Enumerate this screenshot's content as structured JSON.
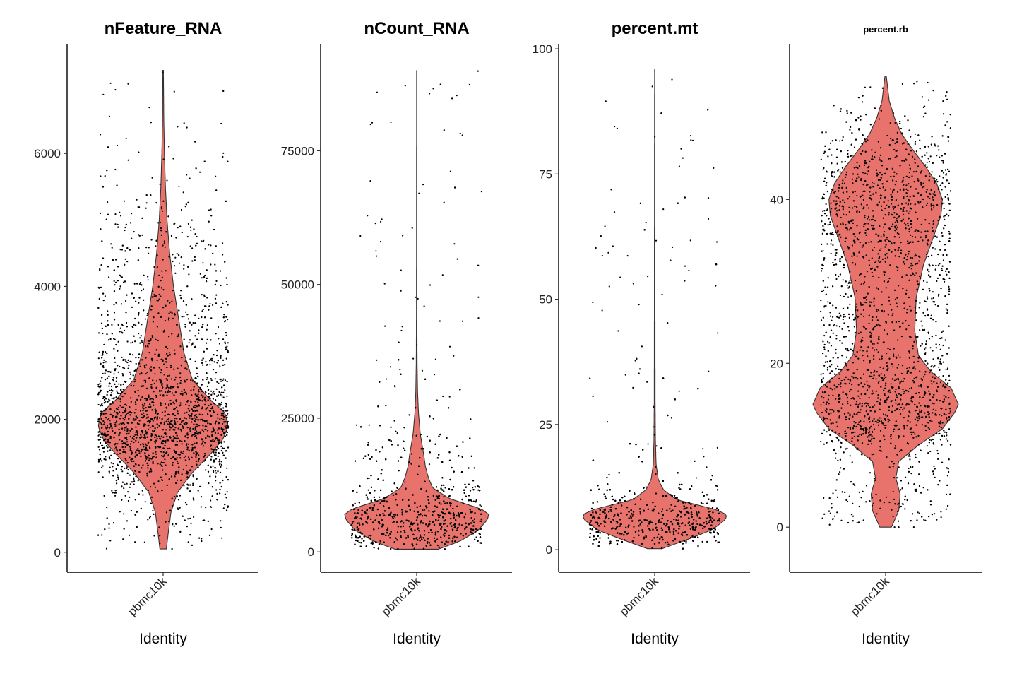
{
  "chart_data": [
    {
      "type": "violin",
      "title": "nFeature_RNA",
      "xlabel": "Identity",
      "ylabel": "",
      "categories": [
        "pbmc10k"
      ],
      "yticks": [
        0,
        2000,
        4000,
        6000
      ],
      "ytick_labels": [
        "0",
        "2000",
        "4000",
        "6000"
      ],
      "ylim": [
        -300,
        7650
      ],
      "density_profile": [
        [
          50,
          0.05
        ],
        [
          300,
          0.08
        ],
        [
          600,
          0.12
        ],
        [
          900,
          0.22
        ],
        [
          1200,
          0.45
        ],
        [
          1500,
          0.75
        ],
        [
          1700,
          0.92
        ],
        [
          1900,
          1.0
        ],
        [
          2100,
          0.95
        ],
        [
          2300,
          0.72
        ],
        [
          2600,
          0.45
        ],
        [
          3000,
          0.32
        ],
        [
          3500,
          0.24
        ],
        [
          4000,
          0.16
        ],
        [
          4500,
          0.1
        ],
        [
          5000,
          0.06
        ],
        [
          5500,
          0.035
        ],
        [
          6000,
          0.02
        ],
        [
          6500,
          0.01
        ],
        [
          7250,
          0.004
        ]
      ],
      "min": 50,
      "max": 7250,
      "fill_color": "#e8736c",
      "n_points": 3200
    },
    {
      "type": "violin",
      "title": "nCount_RNA",
      "xlabel": "Identity",
      "ylabel": "",
      "categories": [
        "pbmc10k"
      ],
      "yticks": [
        0,
        25000,
        50000,
        75000
      ],
      "ytick_labels": [
        "0",
        "25000",
        "50000",
        "75000"
      ],
      "ylim": [
        -3800,
        95000
      ],
      "density_profile": [
        [
          500,
          0.3
        ],
        [
          2000,
          0.6
        ],
        [
          4000,
          0.85
        ],
        [
          6000,
          0.98
        ],
        [
          7000,
          1.0
        ],
        [
          8000,
          0.9
        ],
        [
          10000,
          0.45
        ],
        [
          12000,
          0.22
        ],
        [
          14000,
          0.16
        ],
        [
          16000,
          0.12
        ],
        [
          18000,
          0.1
        ],
        [
          22000,
          0.05
        ],
        [
          26000,
          0.025
        ],
        [
          30000,
          0.012
        ],
        [
          35000,
          0.006
        ],
        [
          45000,
          0.003
        ],
        [
          60000,
          0.002
        ],
        [
          90000,
          0.001
        ]
      ],
      "min": 500,
      "max": 90000,
      "fill_color": "#e8736c",
      "n_points": 3000
    },
    {
      "type": "violin",
      "title": "percent.mt",
      "xlabel": "Identity",
      "ylabel": "",
      "categories": [
        "pbmc10k"
      ],
      "yticks": [
        0,
        25,
        50,
        75,
        100
      ],
      "ytick_labels": [
        "0",
        "25",
        "50",
        "75",
        "100"
      ],
      "ylim": [
        -4.5,
        101
      ],
      "density_profile": [
        [
          0.2,
          0.1
        ],
        [
          2,
          0.45
        ],
        [
          4,
          0.8
        ],
        [
          6,
          0.98
        ],
        [
          7,
          1.0
        ],
        [
          8,
          0.85
        ],
        [
          10,
          0.3
        ],
        [
          12,
          0.12
        ],
        [
          14,
          0.05
        ],
        [
          17,
          0.02
        ],
        [
          22,
          0.01
        ],
        [
          30,
          0.006
        ],
        [
          50,
          0.004
        ],
        [
          75,
          0.003
        ],
        [
          96,
          0.001
        ]
      ],
      "min": 0.2,
      "max": 96,
      "fill_color": "#e8736c",
      "n_points": 2600
    },
    {
      "type": "violin",
      "title": "percent.rb",
      "xlabel": "Identity",
      "ylabel": "",
      "categories": [
        "pbmc10k"
      ],
      "yticks": [
        0,
        20,
        40
      ],
      "ytick_labels": [
        "0",
        "20",
        "40"
      ],
      "ylim": [
        -5.5,
        59
      ],
      "density_profile": [
        [
          0,
          0.08
        ],
        [
          2,
          0.18
        ],
        [
          4,
          0.2
        ],
        [
          6,
          0.14
        ],
        [
          8,
          0.18
        ],
        [
          10,
          0.45
        ],
        [
          12,
          0.78
        ],
        [
          14,
          0.95
        ],
        [
          15,
          1.0
        ],
        [
          17,
          0.9
        ],
        [
          19,
          0.62
        ],
        [
          21,
          0.45
        ],
        [
          24,
          0.4
        ],
        [
          28,
          0.42
        ],
        [
          32,
          0.52
        ],
        [
          36,
          0.68
        ],
        [
          38,
          0.76
        ],
        [
          40,
          0.78
        ],
        [
          42,
          0.7
        ],
        [
          44,
          0.55
        ],
        [
          46,
          0.38
        ],
        [
          48,
          0.22
        ],
        [
          50,
          0.12
        ],
        [
          52,
          0.05
        ],
        [
          55,
          0.01
        ]
      ],
      "min": 0,
      "max": 55,
      "fill_color": "#e8736c",
      "n_points": 3400
    }
  ]
}
